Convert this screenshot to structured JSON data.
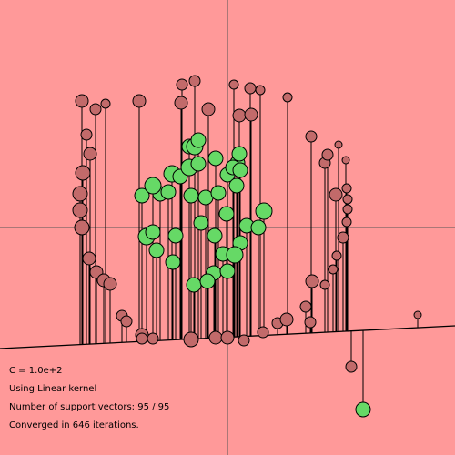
{
  "info": {
    "c_text": "C = 1.0e+2",
    "kernel_text": "Using Linear kernel",
    "support_vectors_text": "Number of support vectors: 95 / 95",
    "iterations_text": "Converged in 646 iterations."
  },
  "colors": {
    "background": "#ff9999",
    "positive_class": "#66d966",
    "negative_class": "#c26a6a",
    "stroke": "#000000"
  },
  "chart_data": {
    "type": "scatter",
    "xlim": [
      -5,
      5
    ],
    "ylim": [
      -5,
      5
    ],
    "decision_boundary": {
      "x1": -5,
      "y1": -2.66,
      "x2": 5,
      "y2": -2.16
    },
    "points": [
      {
        "x": -3.2,
        "y": 2.78,
        "label": -1,
        "r": 7
      },
      {
        "x": -2.9,
        "y": 2.6,
        "label": -1,
        "r": 6
      },
      {
        "x": -2.68,
        "y": 2.72,
        "label": -1,
        "r": 5
      },
      {
        "x": -1.94,
        "y": 2.78,
        "label": -1,
        "r": 7
      },
      {
        "x": -1.0,
        "y": 3.14,
        "label": -1,
        "r": 6
      },
      {
        "x": -0.72,
        "y": 3.22,
        "label": -1,
        "r": 6
      },
      {
        "x": -1.02,
        "y": 2.74,
        "label": -1,
        "r": 7
      },
      {
        "x": -0.42,
        "y": 2.6,
        "label": -1,
        "r": 7
      },
      {
        "x": 0.14,
        "y": 3.14,
        "label": -1,
        "r": 5
      },
      {
        "x": 0.5,
        "y": 3.06,
        "label": -1,
        "r": 6
      },
      {
        "x": 0.72,
        "y": 3.02,
        "label": -1,
        "r": 5
      },
      {
        "x": 1.32,
        "y": 2.86,
        "label": -1,
        "r": 5
      },
      {
        "x": 0.26,
        "y": 2.46,
        "label": -1,
        "r": 7
      },
      {
        "x": 0.52,
        "y": 2.48,
        "label": -1,
        "r": 7
      },
      {
        "x": -3.1,
        "y": 2.04,
        "label": -1,
        "r": 6
      },
      {
        "x": -3.02,
        "y": 1.62,
        "label": -1,
        "r": 7
      },
      {
        "x": -3.18,
        "y": 1.2,
        "label": -1,
        "r": 8
      },
      {
        "x": -3.24,
        "y": 0.74,
        "label": -1,
        "r": 8
      },
      {
        "x": -3.24,
        "y": 0.38,
        "label": -1,
        "r": 8
      },
      {
        "x": -3.2,
        "y": 0.0,
        "label": -1,
        "r": 8
      },
      {
        "x": -3.04,
        "y": -0.68,
        "label": -1,
        "r": 7
      },
      {
        "x": -2.88,
        "y": -0.98,
        "label": -1,
        "r": 7
      },
      {
        "x": -2.72,
        "y": -1.16,
        "label": -1,
        "r": 7
      },
      {
        "x": -2.58,
        "y": -1.24,
        "label": -1,
        "r": 7
      },
      {
        "x": -2.32,
        "y": -1.94,
        "label": -1,
        "r": 6
      },
      {
        "x": -2.22,
        "y": -2.06,
        "label": -1,
        "r": 6
      },
      {
        "x": -1.88,
        "y": -2.36,
        "label": -1,
        "r": 7
      },
      {
        "x": -1.64,
        "y": -2.44,
        "label": -1,
        "r": 6
      },
      {
        "x": -0.8,
        "y": -2.46,
        "label": -1,
        "r": 8
      },
      {
        "x": -0.26,
        "y": -2.42,
        "label": -1,
        "r": 7
      },
      {
        "x": 0.0,
        "y": -2.42,
        "label": -1,
        "r": 7
      },
      {
        "x": 0.36,
        "y": -2.48,
        "label": -1,
        "r": 6
      },
      {
        "x": 0.78,
        "y": -2.3,
        "label": -1,
        "r": 6
      },
      {
        "x": 1.1,
        "y": -2.1,
        "label": -1,
        "r": 6
      },
      {
        "x": 1.3,
        "y": -2.02,
        "label": -1,
        "r": 7
      },
      {
        "x": 1.72,
        "y": -1.74,
        "label": -1,
        "r": 6
      },
      {
        "x": 1.82,
        "y": -2.08,
        "label": -1,
        "r": 6
      },
      {
        "x": 1.86,
        "y": -1.18,
        "label": -1,
        "r": 7
      },
      {
        "x": 2.14,
        "y": -1.26,
        "label": -1,
        "r": 5
      },
      {
        "x": 2.32,
        "y": -0.92,
        "label": -1,
        "r": 5
      },
      {
        "x": 2.4,
        "y": -0.62,
        "label": -1,
        "r": 5
      },
      {
        "x": 2.54,
        "y": -0.22,
        "label": -1,
        "r": 6
      },
      {
        "x": 2.62,
        "y": 0.12,
        "label": -1,
        "r": 5
      },
      {
        "x": 2.64,
        "y": 0.4,
        "label": -1,
        "r": 5
      },
      {
        "x": 2.64,
        "y": 0.62,
        "label": -1,
        "r": 5
      },
      {
        "x": 2.62,
        "y": 0.86,
        "label": -1,
        "r": 5
      },
      {
        "x": 2.38,
        "y": 0.72,
        "label": -1,
        "r": 7
      },
      {
        "x": 2.6,
        "y": 1.48,
        "label": -1,
        "r": 4
      },
      {
        "x": 2.14,
        "y": 1.42,
        "label": -1,
        "r": 6
      },
      {
        "x": 2.2,
        "y": 1.6,
        "label": -1,
        "r": 6
      },
      {
        "x": 2.44,
        "y": 1.82,
        "label": -1,
        "r": 4
      },
      {
        "x": 1.84,
        "y": 2.0,
        "label": -1,
        "r": 6
      },
      {
        "x": 4.18,
        "y": -1.92,
        "label": -1,
        "r": 4
      },
      {
        "x": -1.88,
        "y": -2.44,
        "label": -1,
        "r": 6
      },
      {
        "x": 2.72,
        "y": -3.06,
        "label": -1,
        "r": 6
      },
      {
        "x": -1.22,
        "y": 1.18,
        "label": 1,
        "r": 9
      },
      {
        "x": -1.04,
        "y": 1.12,
        "label": 1,
        "r": 8
      },
      {
        "x": -0.84,
        "y": 1.32,
        "label": 1,
        "r": 9
      },
      {
        "x": -0.64,
        "y": 1.4,
        "label": 1,
        "r": 8
      },
      {
        "x": -0.84,
        "y": 1.78,
        "label": 1,
        "r": 8
      },
      {
        "x": -0.72,
        "y": 1.78,
        "label": 1,
        "r": 9
      },
      {
        "x": -0.64,
        "y": 1.92,
        "label": 1,
        "r": 8
      },
      {
        "x": -0.26,
        "y": 1.52,
        "label": 1,
        "r": 8
      },
      {
        "x": 0.22,
        "y": 1.42,
        "label": 1,
        "r": 8
      },
      {
        "x": 0.0,
        "y": 1.16,
        "label": 1,
        "r": 8
      },
      {
        "x": 0.12,
        "y": 1.32,
        "label": 1,
        "r": 8
      },
      {
        "x": 0.28,
        "y": 1.26,
        "label": 1,
        "r": 8
      },
      {
        "x": 0.26,
        "y": 1.62,
        "label": 1,
        "r": 8
      },
      {
        "x": -1.88,
        "y": 0.7,
        "label": 1,
        "r": 8
      },
      {
        "x": -1.48,
        "y": 0.74,
        "label": 1,
        "r": 8
      },
      {
        "x": -1.64,
        "y": 0.92,
        "label": 1,
        "r": 9
      },
      {
        "x": -1.3,
        "y": 0.78,
        "label": 1,
        "r": 8
      },
      {
        "x": -0.8,
        "y": 0.7,
        "label": 1,
        "r": 8
      },
      {
        "x": -0.48,
        "y": 0.66,
        "label": 1,
        "r": 8
      },
      {
        "x": -0.2,
        "y": 0.76,
        "label": 1,
        "r": 8
      },
      {
        "x": 0.2,
        "y": 0.92,
        "label": 1,
        "r": 8
      },
      {
        "x": -0.02,
        "y": 0.3,
        "label": 1,
        "r": 8
      },
      {
        "x": 0.42,
        "y": 0.04,
        "label": 1,
        "r": 8
      },
      {
        "x": 0.8,
        "y": 0.36,
        "label": 1,
        "r": 9
      },
      {
        "x": 0.68,
        "y": 0.0,
        "label": 1,
        "r": 8
      },
      {
        "x": -1.78,
        "y": -0.2,
        "label": 1,
        "r": 9
      },
      {
        "x": -1.64,
        "y": -0.1,
        "label": 1,
        "r": 8
      },
      {
        "x": -1.56,
        "y": -0.5,
        "label": 1,
        "r": 8
      },
      {
        "x": -1.14,
        "y": -0.18,
        "label": 1,
        "r": 8
      },
      {
        "x": -0.58,
        "y": 0.1,
        "label": 1,
        "r": 8
      },
      {
        "x": -0.28,
        "y": -0.18,
        "label": 1,
        "r": 8
      },
      {
        "x": 0.28,
        "y": -0.34,
        "label": 1,
        "r": 8
      },
      {
        "x": -0.1,
        "y": -0.58,
        "label": 1,
        "r": 8
      },
      {
        "x": 0.16,
        "y": -0.6,
        "label": 1,
        "r": 9
      },
      {
        "x": -1.2,
        "y": -0.76,
        "label": 1,
        "r": 8
      },
      {
        "x": -0.3,
        "y": -1.0,
        "label": 1,
        "r": 8
      },
      {
        "x": 0.0,
        "y": -0.96,
        "label": 1,
        "r": 8
      },
      {
        "x": -0.74,
        "y": -1.26,
        "label": 1,
        "r": 8
      },
      {
        "x": -0.44,
        "y": -1.18,
        "label": 1,
        "r": 8
      },
      {
        "x": 2.98,
        "y": -4.0,
        "label": 1,
        "r": 8
      }
    ]
  }
}
